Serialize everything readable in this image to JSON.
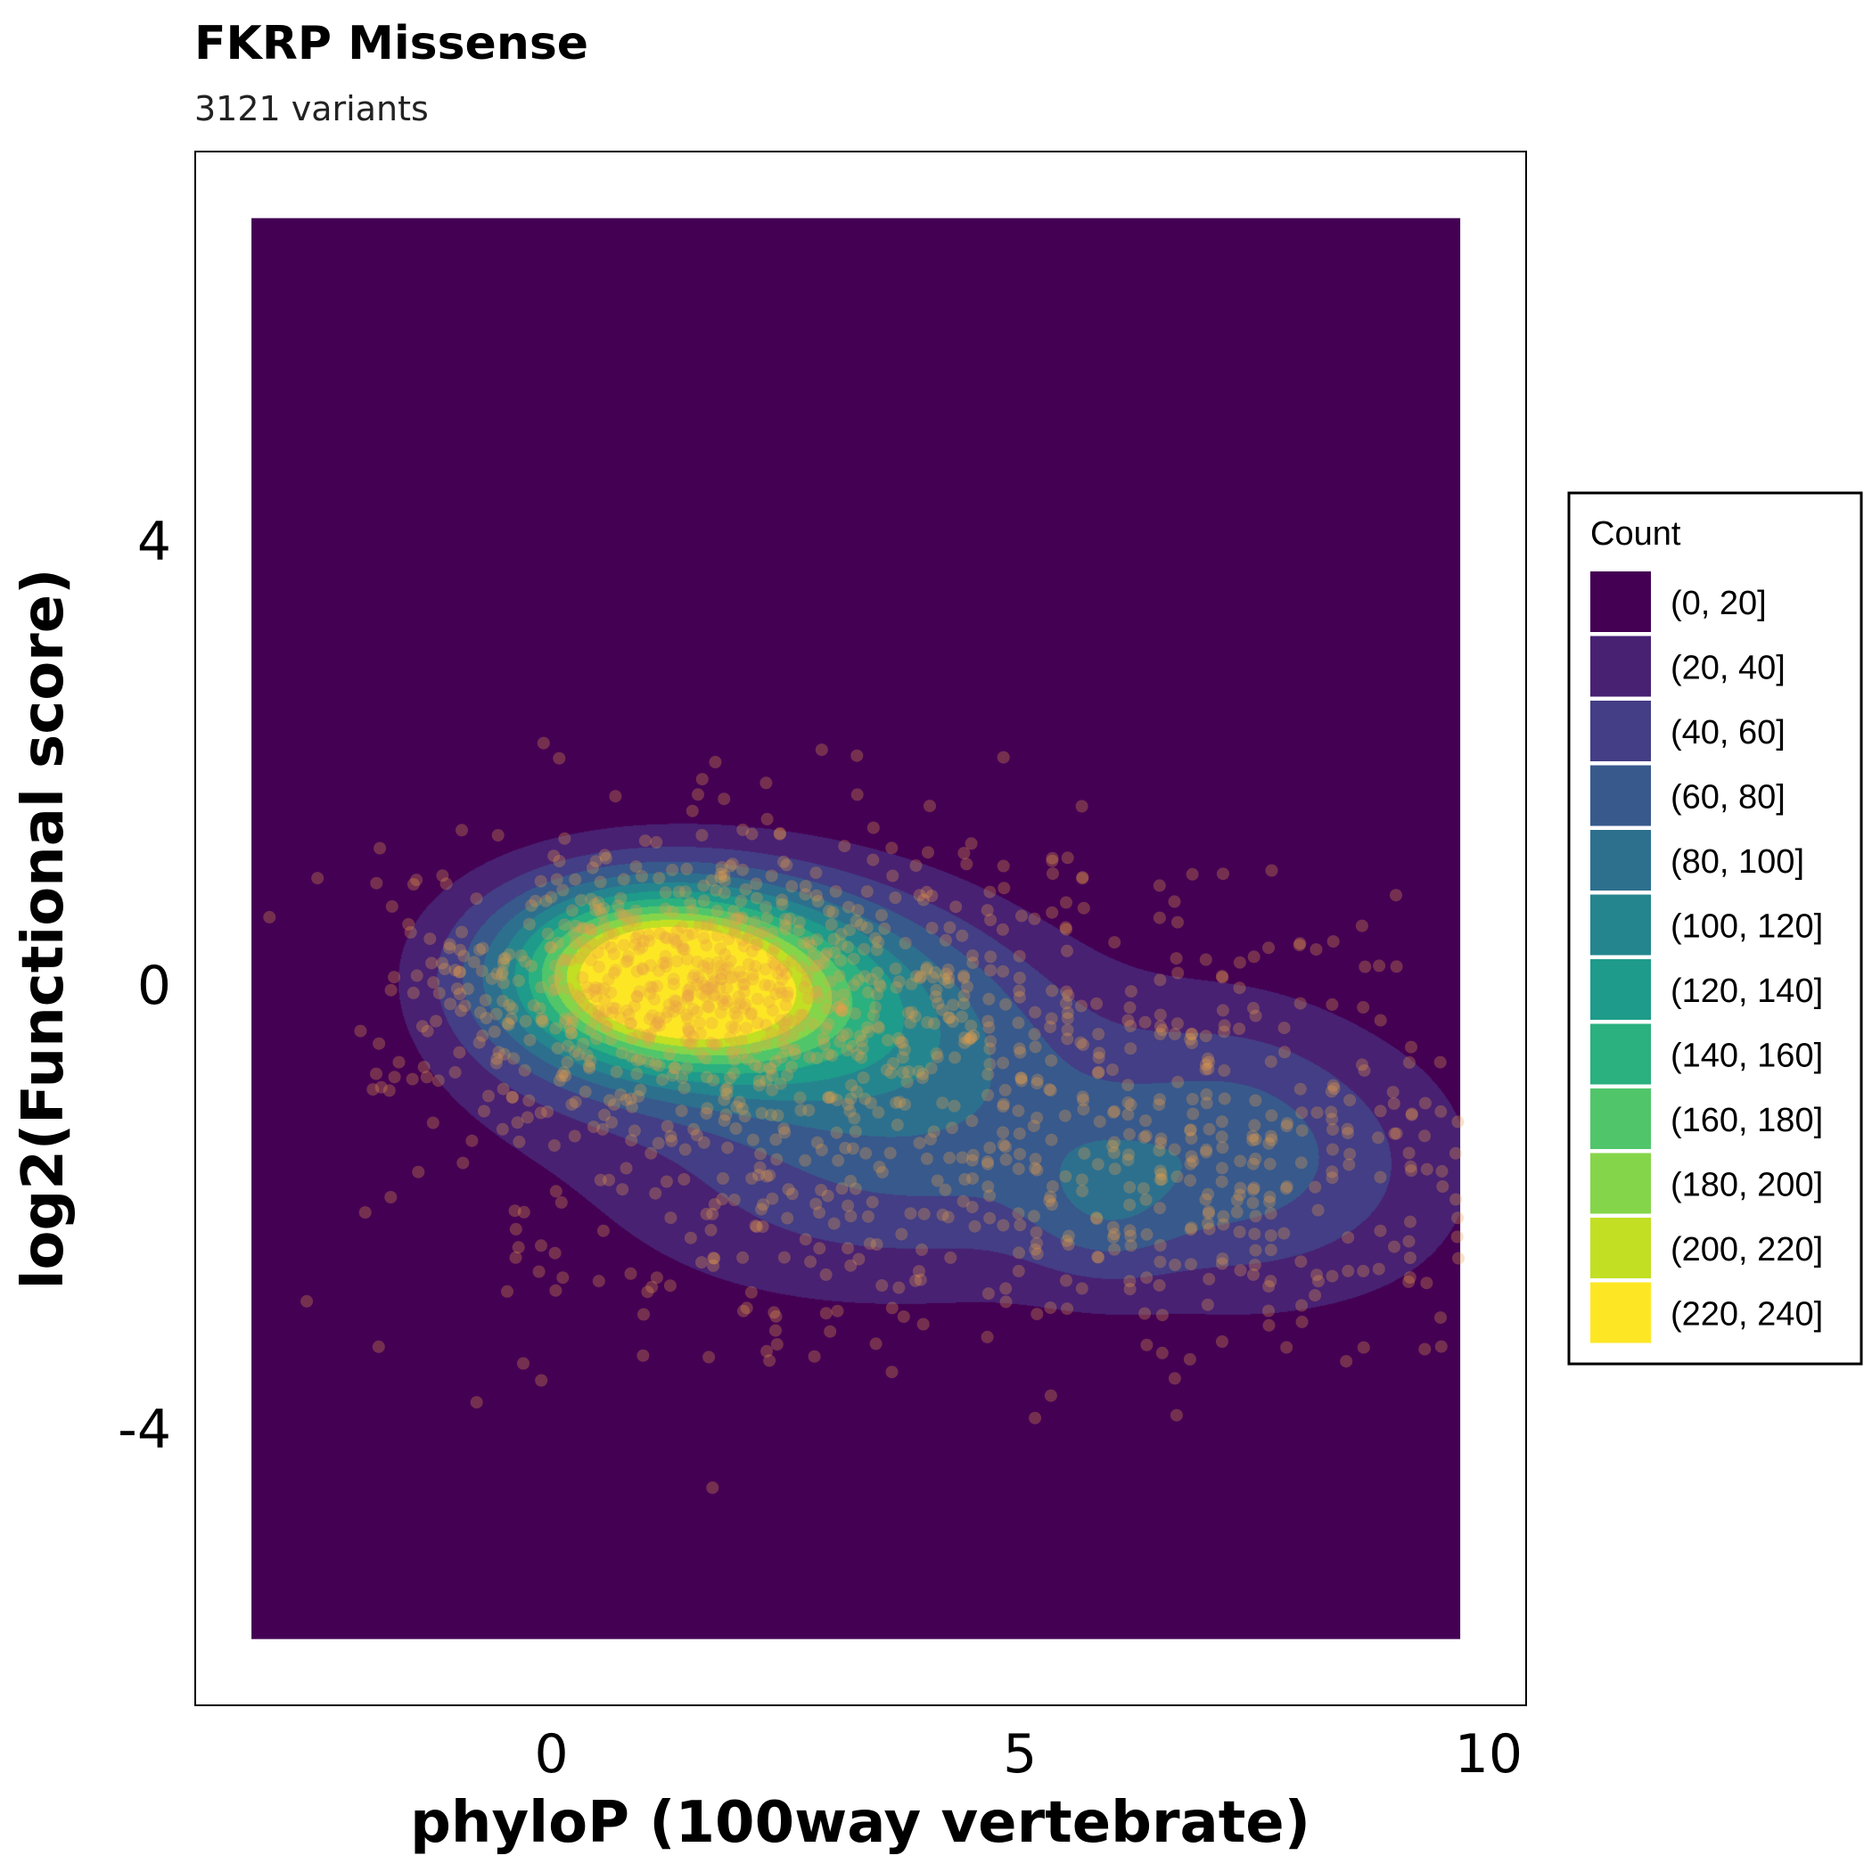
{
  "chart_data": {
    "type": "density_contour_scatter",
    "title": "FKRP Missense",
    "subtitle": "3121 variants",
    "xlabel": "phyloP (100way vertebrate)",
    "ylabel": "log2(Functional score)",
    "xlim": [
      -3.8,
      10.4
    ],
    "ylim": [
      -6.5,
      7.5
    ],
    "x_ticks": [
      0,
      5,
      10
    ],
    "x_tick_labels": [
      "0",
      "5",
      "10"
    ],
    "y_ticks": [
      4,
      0,
      -4
    ],
    "y_tick_labels": [
      "4",
      "0",
      "-4"
    ],
    "panel_background": "#ffffff",
    "density_range_x": [
      -3.2,
      9.7
    ],
    "density_range_y": [
      -5.9,
      6.9
    ],
    "legend": {
      "title": "Count",
      "placement": "right",
      "entries": [
        {
          "label": "(0, 20]",
          "color": "#440154"
        },
        {
          "label": "(20, 40]",
          "color": "#482173"
        },
        {
          "label": "(40, 60]",
          "color": "#433E85"
        },
        {
          "label": "(60, 80]",
          "color": "#38598C"
        },
        {
          "label": "(80, 100]",
          "color": "#2D708E"
        },
        {
          "label": "(100, 120]",
          "color": "#25858E"
        },
        {
          "label": "(120, 140]",
          "color": "#1E9B8A"
        },
        {
          "label": "(140, 160]",
          "color": "#2BB07F"
        },
        {
          "label": "(160, 180]",
          "color": "#51C56A"
        },
        {
          "label": "(180, 200]",
          "color": "#85D54A"
        },
        {
          "label": "(200, 220]",
          "color": "#C2DF23"
        },
        {
          "label": "(220, 240]",
          "color": "#FDE725"
        }
      ]
    },
    "density_clusters": [
      {
        "x": 1.2,
        "y": 0.05,
        "sx": 1.15,
        "sy": 0.55,
        "weight": 240,
        "rot": -0.06
      },
      {
        "x": 2.8,
        "y": -0.1,
        "sx": 1.6,
        "sy": 0.75,
        "weight": 95,
        "rot": -0.1
      },
      {
        "x": 5.0,
        "y": -1.3,
        "sx": 2.2,
        "sy": 0.9,
        "weight": 40,
        "rot": -0.05
      },
      {
        "x": 7.3,
        "y": -1.5,
        "sx": 0.9,
        "sy": 0.9,
        "weight": 40,
        "rot": 0
      },
      {
        "x": 5.9,
        "y": -2.0,
        "sx": 0.6,
        "sy": 0.5,
        "weight": 35,
        "rot": 0
      },
      {
        "x": 3.0,
        "y": -1.9,
        "sx": 2.0,
        "sy": 0.8,
        "weight": 30,
        "rot": 0
      },
      {
        "x": 8.8,
        "y": -1.7,
        "sx": 1.0,
        "sy": 0.9,
        "weight": 25,
        "rot": 0
      },
      {
        "x": -0.2,
        "y": -0.5,
        "sx": 1.1,
        "sy": 0.8,
        "weight": 20,
        "rot": 0
      }
    ],
    "point_color": "#E8A04A",
    "point_opacity": 0.3
  }
}
